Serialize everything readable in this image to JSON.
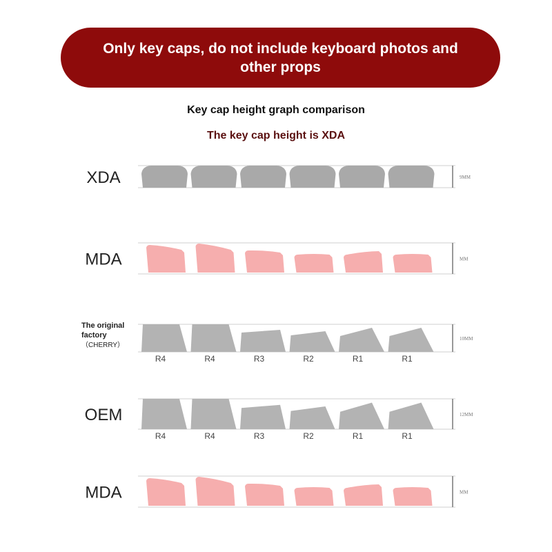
{
  "banner": {
    "text": "Only key caps, do not include keyboard photos and other props",
    "color": "#8e0b0b"
  },
  "title": "Key cap height graph comparison",
  "subtitle": "The key cap height is XDA",
  "colors": {
    "gray_key": "#b3b3b3",
    "xda_key": "#a9a9a9",
    "pink_key": "#f6aeae",
    "line": "#cfcfcf"
  },
  "rows": [
    {
      "profile": "XDA",
      "dimension": "9MM",
      "key_labels": []
    },
    {
      "profile": "MDA",
      "dimension": "MM",
      "key_labels": []
    },
    {
      "profile_lines": [
        "The original",
        "factory",
        "（CHERRY）"
      ],
      "dimension": "10MM",
      "key_labels": [
        "R4",
        "R4",
        "R3",
        "R2",
        "R1",
        "R1"
      ]
    },
    {
      "profile": "OEM",
      "dimension": "12MM",
      "key_labels": [
        "R4",
        "R4",
        "R3",
        "R2",
        "R1",
        "R1"
      ]
    },
    {
      "profile": "MDA",
      "dimension": "MM",
      "key_labels": []
    }
  ]
}
